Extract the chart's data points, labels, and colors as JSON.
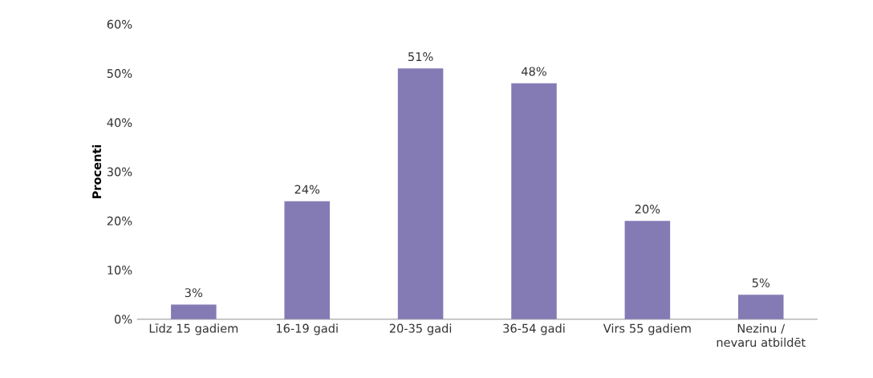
{
  "chart_data": {
    "type": "bar",
    "categories": [
      "Līdz 15 gadiem",
      "16-19 gadi",
      "20-35 gadi",
      "36-54 gadi",
      "Virs 55 gadiem",
      "Nezinu / nevaru atbildēt"
    ],
    "values": [
      3,
      24,
      51,
      48,
      20,
      5
    ],
    "value_labels": [
      "3%",
      "24%",
      "51%",
      "48%",
      "20%",
      "5%"
    ],
    "color": "#847bb5",
    "ylim": [
      0,
      60
    ],
    "yticks": [
      {
        "value": 0,
        "label": "0%"
      },
      {
        "value": 10,
        "label": "10%"
      },
      {
        "value": 20,
        "label": "20%"
      },
      {
        "value": 30,
        "label": "30%"
      },
      {
        "value": 40,
        "label": "40%"
      },
      {
        "value": 50,
        "label": "50%"
      },
      {
        "value": 60,
        "label": "60%"
      }
    ],
    "ylabel": "Procenti"
  }
}
